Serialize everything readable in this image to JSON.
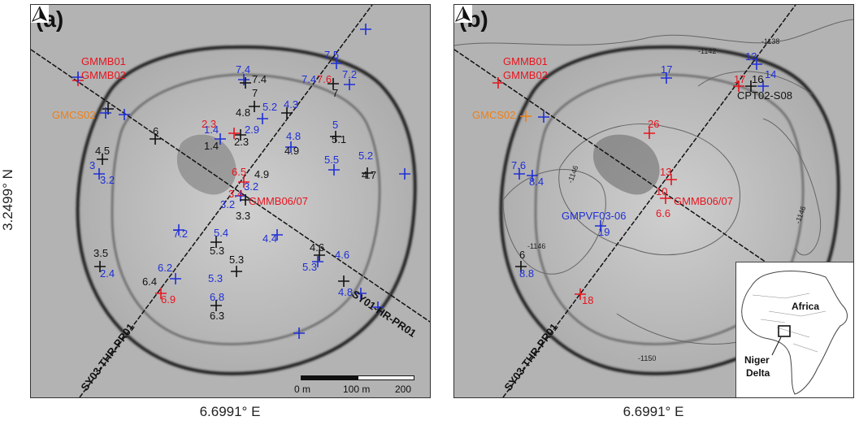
{
  "panels": {
    "a": {
      "label": "(a)",
      "labels_red": [
        "GMMB01",
        "GMMB02",
        "2.3",
        "7.6",
        "6.5",
        "3.4",
        "GMMB06/07",
        "6.9"
      ],
      "labels_orange": [
        "GMCS02"
      ],
      "labels_blue": [
        "7.4",
        "7.5",
        "7.4",
        "7.2",
        "5.2",
        "4.3",
        "1.4",
        "2.9",
        "4.8",
        "5",
        "5.5",
        "5.2",
        "3",
        "3.2",
        "3.2",
        "3.2",
        "7.2",
        "5.4",
        "4.4",
        "2.4",
        "6.2",
        "5.3",
        "4.6",
        "4.8",
        "5.3",
        "6.8"
      ],
      "labels_black": [
        "7.4",
        "7",
        "4.8",
        "7",
        "6",
        "1.4",
        "2.3",
        "4.9",
        "5.1",
        "4.5",
        "4.9",
        "4.7",
        "3.3",
        "5.3",
        "3.5",
        "6.4",
        "5.3",
        "6.3",
        "4.6"
      ],
      "profile_1": "SY03-THR-PR01",
      "profile_2": "SY01-HR-PR01",
      "scale": {
        "t0": "0 m",
        "t1": "100 m",
        "t2": "200 m"
      }
    },
    "b": {
      "label": "(b)",
      "labels_red": [
        "GMMB01",
        "GMMB02",
        "17",
        "26",
        "13",
        "10",
        "GMMB06/07",
        "6.6",
        "18"
      ],
      "labels_orange": [
        "GMCS02"
      ],
      "labels_blue": [
        "17",
        "13",
        "14",
        "7.6",
        "8.4",
        "GMPVF03-06",
        "19",
        "8.8"
      ],
      "labels_black": [
        "16",
        "CPT02-S08",
        "6"
      ],
      "contours": [
        "-1142",
        "-1138",
        "-1146",
        "-1146",
        "-1146",
        "-1150"
      ],
      "profile_1": "SY03-THR-PR01",
      "inset": {
        "africa": "Africa",
        "niger": "Niger",
        "delta": "Delta"
      }
    }
  },
  "axes": {
    "x": "6.6991° E",
    "y": "3.2499° N"
  },
  "colors": {
    "red": "#e8141e",
    "blue": "#1f2fd6",
    "orange": "#f07f13",
    "black": "#111111"
  }
}
